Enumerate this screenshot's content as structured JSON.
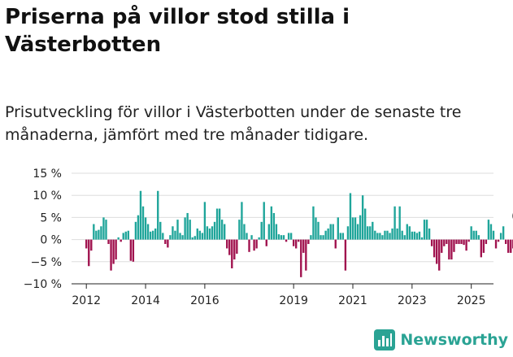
{
  "title": "Priserna på villor stod stilla i Västerbotten",
  "subtitle": "Prisutveckling för villor i Västerbotten under de senaste tre månaderna, jämfört med tre månader tidigare.",
  "brand": {
    "name": "Newsworthy",
    "color": "#2aa394",
    "icon": "bar-chart-icon"
  },
  "colors": {
    "positive": "#1fa59a",
    "negative": "#a0124e",
    "grid": "#dddddd",
    "axis": "#222222"
  },
  "chart_data": {
    "type": "bar",
    "ylim": [
      -10,
      15
    ],
    "xlim": [
      2011.5,
      2025.75
    ],
    "y_ticks": [
      15,
      10,
      5,
      0,
      -5,
      -10
    ],
    "y_tick_labels": [
      "15 %",
      "10 %",
      "5 %",
      "0 %",
      "−5 %",
      "−10 %"
    ],
    "x_ticks": [
      2012,
      2014,
      2016,
      2019,
      2021,
      2023,
      2025
    ],
    "x_tick_labels": [
      "2012",
      "2014",
      "2016",
      "2019",
      "2021",
      "2023",
      "2025"
    ],
    "grid": true,
    "annotation": "0 %",
    "x_start": 2012.0,
    "x_step": 0.083333,
    "values": [
      -2,
      -6,
      -2.5,
      3.5,
      2,
      2.2,
      3,
      5,
      4.5,
      -1,
      -7,
      -5.5,
      -4.5,
      0.5,
      -0.5,
      1.5,
      1.8,
      2,
      -4.8,
      -5,
      4,
      5.5,
      11,
      7.5,
      5,
      3.5,
      1.8,
      2,
      2.5,
      11,
      4,
      1.5,
      -1,
      -1.8,
      1,
      3,
      2,
      4.5,
      1.5,
      1,
      5,
      6,
      4.5,
      0.5,
      0.8,
      2.5,
      2,
      1.5,
      8.5,
      3,
      2.5,
      3,
      4,
      7,
      7,
      4.5,
      3.5,
      -2,
      -3.5,
      -6.5,
      -4.5,
      -3.2,
      4.5,
      8.5,
      3.5,
      1.5,
      -2.8,
      1,
      -2.5,
      -2,
      0.5,
      4,
      8.5,
      -1.5,
      3.5,
      7.5,
      6,
      3.5,
      1.2,
      1,
      1,
      -0.5,
      1.5,
      1.5,
      -1.5,
      -2,
      -0.5,
      -8.5,
      -3,
      -7,
      -1,
      1,
      7.5,
      5,
      4,
      1,
      1,
      2,
      2.5,
      3.5,
      3.5,
      -2,
      5,
      1.5,
      1.5,
      -7,
      3,
      10.5,
      5,
      5,
      3.5,
      5.5,
      10,
      7,
      3,
      3,
      4,
      2,
      1.5,
      1.5,
      1,
      2,
      2,
      1.5,
      2.5,
      7.5,
      2.5,
      7.5,
      2,
      1,
      3.5,
      3,
      1.8,
      1.8,
      1.5,
      1.8,
      0.5,
      4.5,
      4.5,
      2.5,
      -1.5,
      -4,
      -5.5,
      -7,
      -3,
      -1.5,
      -1,
      -4.5,
      -4.5,
      -2.8,
      -1,
      -1,
      -1,
      -1.2,
      -2.5,
      -0.5,
      3,
      2,
      2,
      1,
      -4,
      -3,
      -1,
      4.5,
      3.5,
      2,
      -2,
      -0.5,
      1.5,
      3,
      -1,
      -3,
      -3,
      -2,
      -1
    ]
  }
}
